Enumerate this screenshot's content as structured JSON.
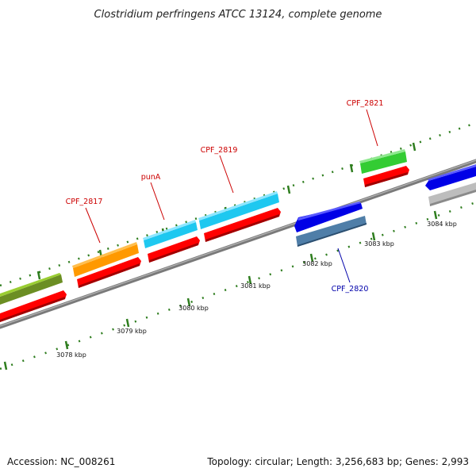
{
  "title": "Clostridium perfringens ATCC 13124, complete genome",
  "footer": {
    "accession": "Accession: NC_008261",
    "summary": "Topology: circular; Length: 3,256,683 bp; Genes: 2,993"
  },
  "colors": {
    "backbone": "#808080",
    "tick": "#2e7d1e",
    "label_forward": "#cc0000",
    "label_reverse": "#0000aa"
  },
  "scale_labels": [
    "3078 kbp",
    "3079 kbp",
    "3080 kbp",
    "3081 kbp",
    "3082 kbp",
    "3083 kbp",
    "3084 kbp"
  ],
  "gene_labels": [
    {
      "text": "CPF_2817",
      "color": "#cc0000"
    },
    {
      "text": "punA",
      "color": "#cc0000"
    },
    {
      "text": "CPF_2819",
      "color": "#cc0000"
    },
    {
      "text": "CPF_2820",
      "color": "#0000aa"
    },
    {
      "text": "CPF_2821",
      "color": "#cc0000"
    }
  ],
  "features": [
    {
      "name": "olive-gene",
      "color": "#6b8e23"
    },
    {
      "name": "red-cds-1",
      "color": "#ff0000"
    },
    {
      "name": "orange-gene",
      "color": "#ff9900"
    },
    {
      "name": "red-cds-2",
      "color": "#ff0000"
    },
    {
      "name": "cyan-gene-puna",
      "color": "#1ec8f0"
    },
    {
      "name": "red-cds-3",
      "color": "#ff0000"
    },
    {
      "name": "cyan-gene-cpf2819",
      "color": "#1ec8f0"
    },
    {
      "name": "red-cds-4",
      "color": "#ff0000"
    },
    {
      "name": "blue-gene-1",
      "color": "#0000e6"
    },
    {
      "name": "steelblue-cds",
      "color": "#4f7ea8"
    },
    {
      "name": "green-gene-cpf2821",
      "color": "#33cc33"
    },
    {
      "name": "red-cds-5",
      "color": "#ff0000"
    },
    {
      "name": "blue-gene-2",
      "color": "#0000e6"
    },
    {
      "name": "gray-cds",
      "color": "#bdbdbd"
    }
  ]
}
